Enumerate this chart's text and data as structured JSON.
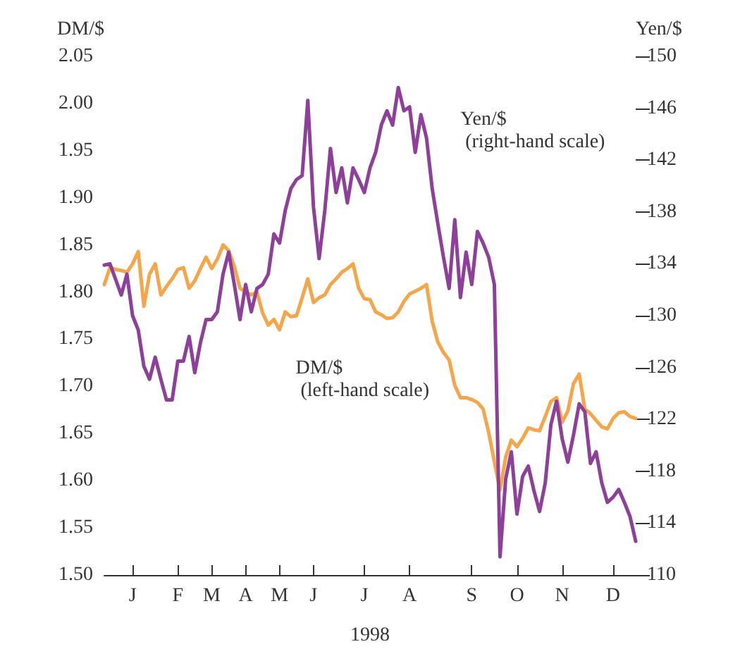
{
  "chart_data": {
    "type": "line",
    "xlabel": "1998",
    "ylabel": "DM/$",
    "y2label": "Yen/$",
    "categories": [
      null,
      null,
      null,
      null,
      null,
      "J",
      null,
      null,
      null,
      null,
      null,
      null,
      null,
      "F",
      null,
      null,
      null,
      null,
      null,
      "M",
      null,
      null,
      null,
      null,
      null,
      "A",
      null,
      null,
      null,
      null,
      null,
      "M",
      null,
      null,
      null,
      null,
      null,
      "J",
      null,
      null,
      null,
      null,
      null,
      null,
      null,
      null,
      "J",
      null,
      null,
      null,
      null,
      null,
      null,
      null,
      "A",
      null,
      null,
      null,
      null,
      null,
      null,
      null,
      null,
      null,
      null,
      "S",
      null,
      null,
      null,
      null,
      null,
      null,
      null,
      "O",
      null,
      null,
      null,
      null,
      null,
      null,
      null,
      "N",
      null,
      null,
      null,
      null,
      null,
      null,
      null,
      null,
      "D",
      null,
      null,
      null,
      null
    ],
    "ylim": [
      1.5,
      2.05
    ],
    "yticks": [
      {
        "value": 1.5,
        "label": "1.50"
      },
      {
        "value": 1.55,
        "label": "1.55"
      },
      {
        "value": 1.6,
        "label": "1.60"
      },
      {
        "value": 1.65,
        "label": "1.65"
      },
      {
        "value": 1.7,
        "label": "1.70"
      },
      {
        "value": 1.75,
        "label": "1.75"
      },
      {
        "value": 1.8,
        "label": "1.80"
      },
      {
        "value": 1.85,
        "label": "1.85"
      },
      {
        "value": 1.9,
        "label": "1.90"
      },
      {
        "value": 1.95,
        "label": "1.95"
      },
      {
        "value": 2.0,
        "label": "2.00"
      },
      {
        "value": 2.05,
        "label": "2.05"
      }
    ],
    "y2lim": [
      110,
      150
    ],
    "y2ticks": [
      110,
      114,
      118,
      122,
      126,
      130,
      134,
      138,
      142,
      146,
      150
    ],
    "grid": false,
    "marker": "none",
    "line_style": "solid",
    "series": [
      {
        "name": "DM/$\n (left-hand scale)",
        "color": "#f5a54a",
        "values": [
          1.808,
          1.826,
          1.824,
          1.823,
          1.821,
          1.83,
          1.843,
          1.785,
          1.819,
          1.83,
          1.797,
          1.806,
          1.814,
          1.824,
          1.826,
          1.804,
          1.812,
          1.825,
          1.837,
          1.825,
          1.835,
          1.85,
          1.844,
          1.827,
          1.804,
          1.8,
          1.797,
          1.8,
          1.778,
          1.765,
          1.771,
          1.76,
          1.779,
          1.774,
          1.775,
          1.794,
          1.814,
          1.789,
          1.794,
          1.797,
          1.808,
          1.814,
          1.821,
          1.825,
          1.83,
          1.804,
          1.793,
          1.792,
          1.779,
          1.776,
          1.772,
          1.773,
          1.779,
          1.79,
          1.798,
          1.801,
          1.804,
          1.808,
          1.769,
          1.747,
          1.736,
          1.728,
          1.701,
          1.688,
          1.688,
          1.686,
          1.683,
          1.676,
          1.651,
          1.62,
          1.59,
          1.625,
          1.643,
          1.636,
          1.645,
          1.656,
          1.654,
          1.653,
          1.668,
          1.684,
          1.688,
          1.662,
          1.674,
          1.703,
          1.713,
          1.676,
          1.671,
          1.664,
          1.657,
          1.655,
          1.666,
          1.672,
          1.673,
          1.668,
          1.666
        ]
      },
      {
        "name": "Yen/$\n (right-hand scale)",
        "color": "#8e3f9a",
        "axis": "y2",
        "values": [
          133.9,
          134.0,
          132.8,
          131.6,
          133.2,
          130.0,
          128.9,
          126.1,
          125.1,
          126.8,
          125.1,
          123.5,
          123.5,
          126.5,
          126.5,
          128.4,
          125.6,
          127.9,
          129.7,
          129.7,
          130.3,
          133.2,
          134.9,
          132.4,
          129.7,
          132.4,
          130.3,
          132.1,
          132.4,
          133.2,
          136.3,
          135.6,
          138.1,
          139.8,
          140.5,
          140.8,
          146.6,
          138.4,
          134.4,
          138.1,
          142.9,
          139.5,
          141.4,
          138.7,
          141.4,
          140.5,
          139.5,
          141.4,
          142.6,
          144.7,
          145.8,
          144.7,
          147.6,
          145.8,
          146.1,
          142.6,
          145.5,
          143.7,
          139.8,
          137.1,
          134.5,
          132.1,
          137.4,
          131.4,
          134.9,
          132.4,
          136.5,
          135.6,
          134.5,
          132.4,
          111.4,
          117.4,
          119.5,
          114.7,
          117.6,
          118.4,
          116.5,
          114.9,
          117.1,
          121.6,
          123.4,
          120.5,
          118.7,
          120.8,
          123.2,
          122.6,
          118.6,
          119.5,
          117.1,
          115.6,
          116.0,
          116.6,
          115.6,
          114.5,
          112.6
        ]
      }
    ]
  }
}
